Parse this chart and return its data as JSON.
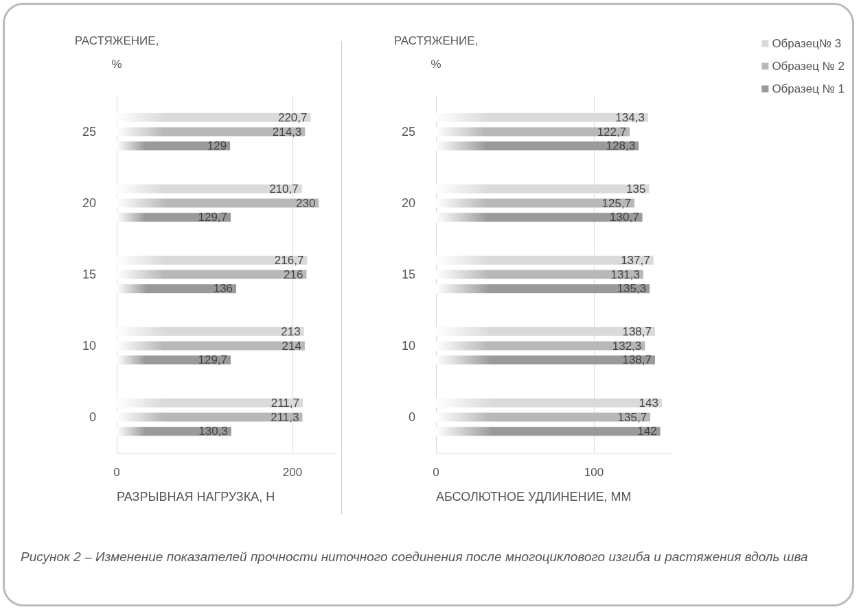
{
  "chart_data": [
    {
      "type": "bar",
      "orientation": "horizontal",
      "ylabel": "РАСТЯЖЕНИЕ,\n%",
      "xlabel": "РАЗРЫВНАЯ НАГРУЗКА, Н",
      "categories": [
        "25",
        "20",
        "15",
        "10",
        "0"
      ],
      "series": [
        {
          "color": "#dadada",
          "values": [
            220.7,
            210.7,
            216.7,
            213,
            211.7
          ],
          "value_labels": [
            "220,7",
            "210,7",
            "216,7",
            "213",
            "211,7"
          ]
        },
        {
          "color": "#b8b8b8",
          "values": [
            214.3,
            230,
            216,
            214,
            211.3
          ],
          "value_labels": [
            "214,3",
            "230",
            "216",
            "214",
            "211,3"
          ]
        },
        {
          "color": "#9a9a9a",
          "values": [
            129,
            129.7,
            136,
            129.7,
            130.3
          ],
          "value_labels": [
            "129",
            "129,7",
            "136",
            "129,7",
            "130,3"
          ]
        }
      ],
      "xlim": [
        0,
        250
      ],
      "xticks": [
        0,
        200
      ],
      "grid": "x",
      "legend": false,
      "annotations": [
        "Рисунок 2 – Изменение показателей прочности ниточного соединения после многоциклового изгиба и растяжения вдоль шва"
      ]
    },
    {
      "type": "bar",
      "orientation": "horizontal",
      "ylabel": "РАСТЯЖЕНИЕ,\n%",
      "xlabel": "АБСОЛЮТНОЕ УДЛИНЕНИЕ, ММ",
      "categories": [
        "25",
        "20",
        "15",
        "10",
        "0"
      ],
      "series": [
        {
          "name": "Образец№ 3",
          "color": "#dadada",
          "values": [
            134.3,
            135,
            137.7,
            138.7,
            143
          ],
          "value_labels": [
            "134,3",
            "135",
            "137,7",
            "138,7",
            "143"
          ]
        },
        {
          "name": "Образец № 2",
          "color": "#b8b8b8",
          "values": [
            122.7,
            125.7,
            131.3,
            132.3,
            135.7
          ],
          "value_labels": [
            "122,7",
            "125,7",
            "131,3",
            "132,3",
            "135,7"
          ]
        },
        {
          "name": "Образец № 1",
          "color": "#9a9a9a",
          "values": [
            128.3,
            130.7,
            135.3,
            138.7,
            142
          ],
          "value_labels": [
            "128,3",
            "130,7",
            "135,3",
            "138,7",
            "142"
          ]
        }
      ],
      "xlim": [
        0,
        150
      ],
      "xticks": [
        0,
        100
      ],
      "grid": "x",
      "legend": "top right"
    }
  ]
}
